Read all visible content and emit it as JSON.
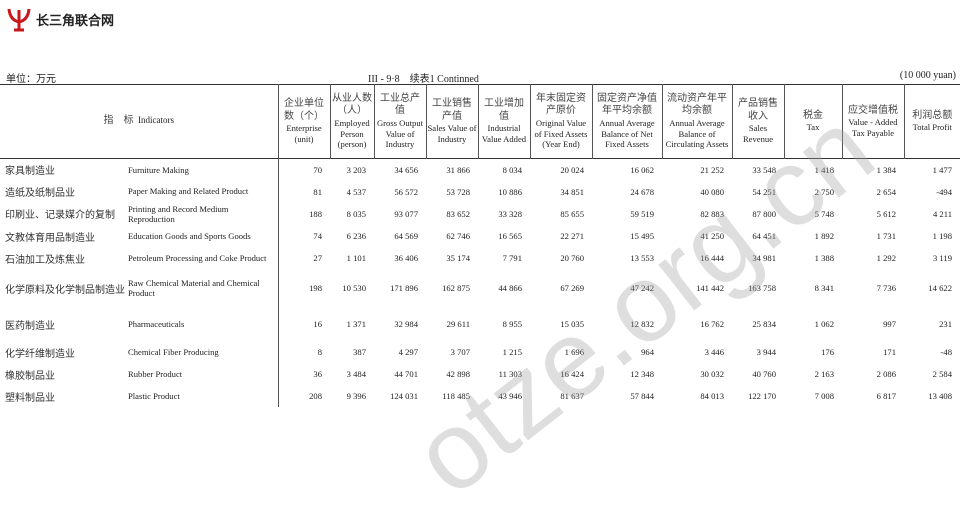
{
  "site": {
    "name": "长三角联合网",
    "logo_color": "#c8161d"
  },
  "page": {
    "unit_zh": "单位：万元",
    "table_title": "III - 9·8　续表1  Continned",
    "unit_en": "(10 000 yuan)",
    "watermark": "otze.org.cn"
  },
  "columns": [
    {
      "zh": "指　标",
      "en": "Indicators"
    },
    {
      "zh": "企业单位数（个）",
      "en": "Enterprise (unit)"
    },
    {
      "zh": "从业人数（人）",
      "en": "Employed Person (person)"
    },
    {
      "zh": "工业总产值",
      "en": "Gross Output Value of Industry"
    },
    {
      "zh": "工业销售产值",
      "en": "Sales Value of Industry"
    },
    {
      "zh": "工业增加值",
      "en": "Industrial Value Added"
    },
    {
      "zh": "年末固定资产原价",
      "en": "Original Value of Fixed Assets (Year End)"
    },
    {
      "zh": "固定资产净值年平均余额",
      "en": "Annual Average Balance of Net Fixed Assets"
    },
    {
      "zh": "流动资产年平均余额",
      "en": "Annual Average Balance of Circulating Assets"
    },
    {
      "zh": "产品销售收入",
      "en": "Sales Revenue"
    },
    {
      "zh": "税金",
      "en": "Tax"
    },
    {
      "zh": "应交增值税",
      "en": "Value - Added Tax Payable"
    },
    {
      "zh": "利润总额",
      "en": "Total Profit"
    }
  ],
  "rows": [
    {
      "zh": "家具制造业",
      "en": "Furniture Making",
      "v": [
        "70",
        "3 203",
        "34 656",
        "31 866",
        "8 034",
        "20 024",
        "16 062",
        "21 252",
        "33 548",
        "1 418",
        "1 384",
        "1 477"
      ]
    },
    {
      "zh": "造纸及纸制品业",
      "en": "Paper Making and Related Product",
      "v": [
        "81",
        "4 537",
        "56 572",
        "53 728",
        "10 886",
        "34 851",
        "24 678",
        "40 080",
        "54 251",
        "2 750",
        "2 654",
        "-494"
      ]
    },
    {
      "zh": "印刷业、记录媒介的复制",
      "en": "Printing and Record Medium Reproduction",
      "v": [
        "188",
        "8 035",
        "93 077",
        "83 652",
        "33 328",
        "85 655",
        "59 519",
        "82 883",
        "87 800",
        "5 748",
        "5 612",
        "4 211"
      ]
    },
    {
      "zh": "文教体育用品制造业",
      "en": "Education Goods and Sports Goods",
      "v": [
        "74",
        "6 236",
        "64 569",
        "62 746",
        "16 565",
        "22 271",
        "15 495",
        "41 250",
        "64 451",
        "1 892",
        "1 731",
        "1 198"
      ]
    },
    {
      "zh": "石油加工及炼焦业",
      "en": "Petroleum Processing and Coke Product",
      "v": [
        "27",
        "1 101",
        "36 406",
        "35 174",
        "7 791",
        "20 760",
        "13 553",
        "16 444",
        "34 981",
        "1 388",
        "1 292",
        "3 119"
      ]
    },
    {
      "zh": "化学原料及化学制品制造业",
      "en": "Raw Chemical Material and Chemical Product",
      "v": [
        "198",
        "10 530",
        "171 896",
        "162 875",
        "44 866",
        "67 269",
        "47 242",
        "141 442",
        "163 758",
        "8 341",
        "7 736",
        "14 622"
      ]
    },
    {
      "zh": "医药制造业",
      "en": "Pharmaceuticals",
      "v": [
        "16",
        "1 371",
        "32 984",
        "29 611",
        "8 955",
        "15 035",
        "12 832",
        "16 762",
        "25 834",
        "1 062",
        "997",
        "231"
      ]
    },
    {
      "zh": "化学纤维制造业",
      "en": "Chemical Fiber Producing",
      "v": [
        "8",
        "387",
        "4 297",
        "3 707",
        "1 215",
        "1 696",
        "964",
        "3 446",
        "3 944",
        "176",
        "171",
        "-48"
      ]
    },
    {
      "zh": "橡胶制品业",
      "en": "Rubber Product",
      "v": [
        "36",
        "3 484",
        "44 701",
        "42 898",
        "11 303",
        "16 424",
        "12 348",
        "30 032",
        "40 760",
        "2 163",
        "2 086",
        "2 584"
      ]
    },
    {
      "zh": "塑料制品业",
      "en": "Plastic Product",
      "v": [
        "208",
        "9 396",
        "124 031",
        "118 485",
        "43 946",
        "81 637",
        "57 844",
        "84 013",
        "122 170",
        "7 008",
        "6 817",
        "13 408"
      ]
    }
  ]
}
